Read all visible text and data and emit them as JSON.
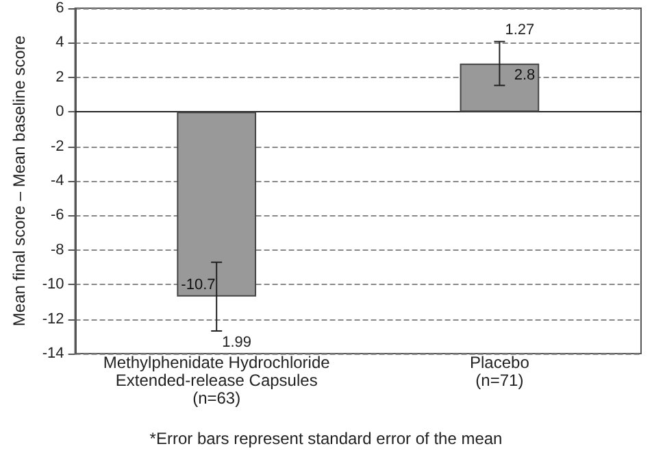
{
  "chart_data": {
    "type": "bar",
    "ylabel": "Mean final score – Mean baseline score",
    "categories": [
      "Methylphenidate Hydrochloride\nExtended-release Capsules\n(n=63)",
      "Placebo\n(n=71)"
    ],
    "values": [
      -10.7,
      2.8
    ],
    "errors": [
      1.99,
      1.27
    ],
    "color": "#999999",
    "ylim": [
      -14,
      6
    ],
    "yticks": [
      -14,
      -12,
      -10,
      -8,
      -6,
      -4,
      -2,
      0,
      2,
      4,
      6
    ],
    "grid": "y",
    "data_labels": true,
    "annotations": [
      {
        "text": "1.99",
        "x": "Methylphenidate Hydrochloride\nExtended-release Capsules\n(n=63)",
        "y": -12.69
      },
      {
        "text": "1.27",
        "x": "Placebo\n(n=71)",
        "y": 4.07
      },
      "*Error bars represent standard error of the mean"
    ]
  }
}
